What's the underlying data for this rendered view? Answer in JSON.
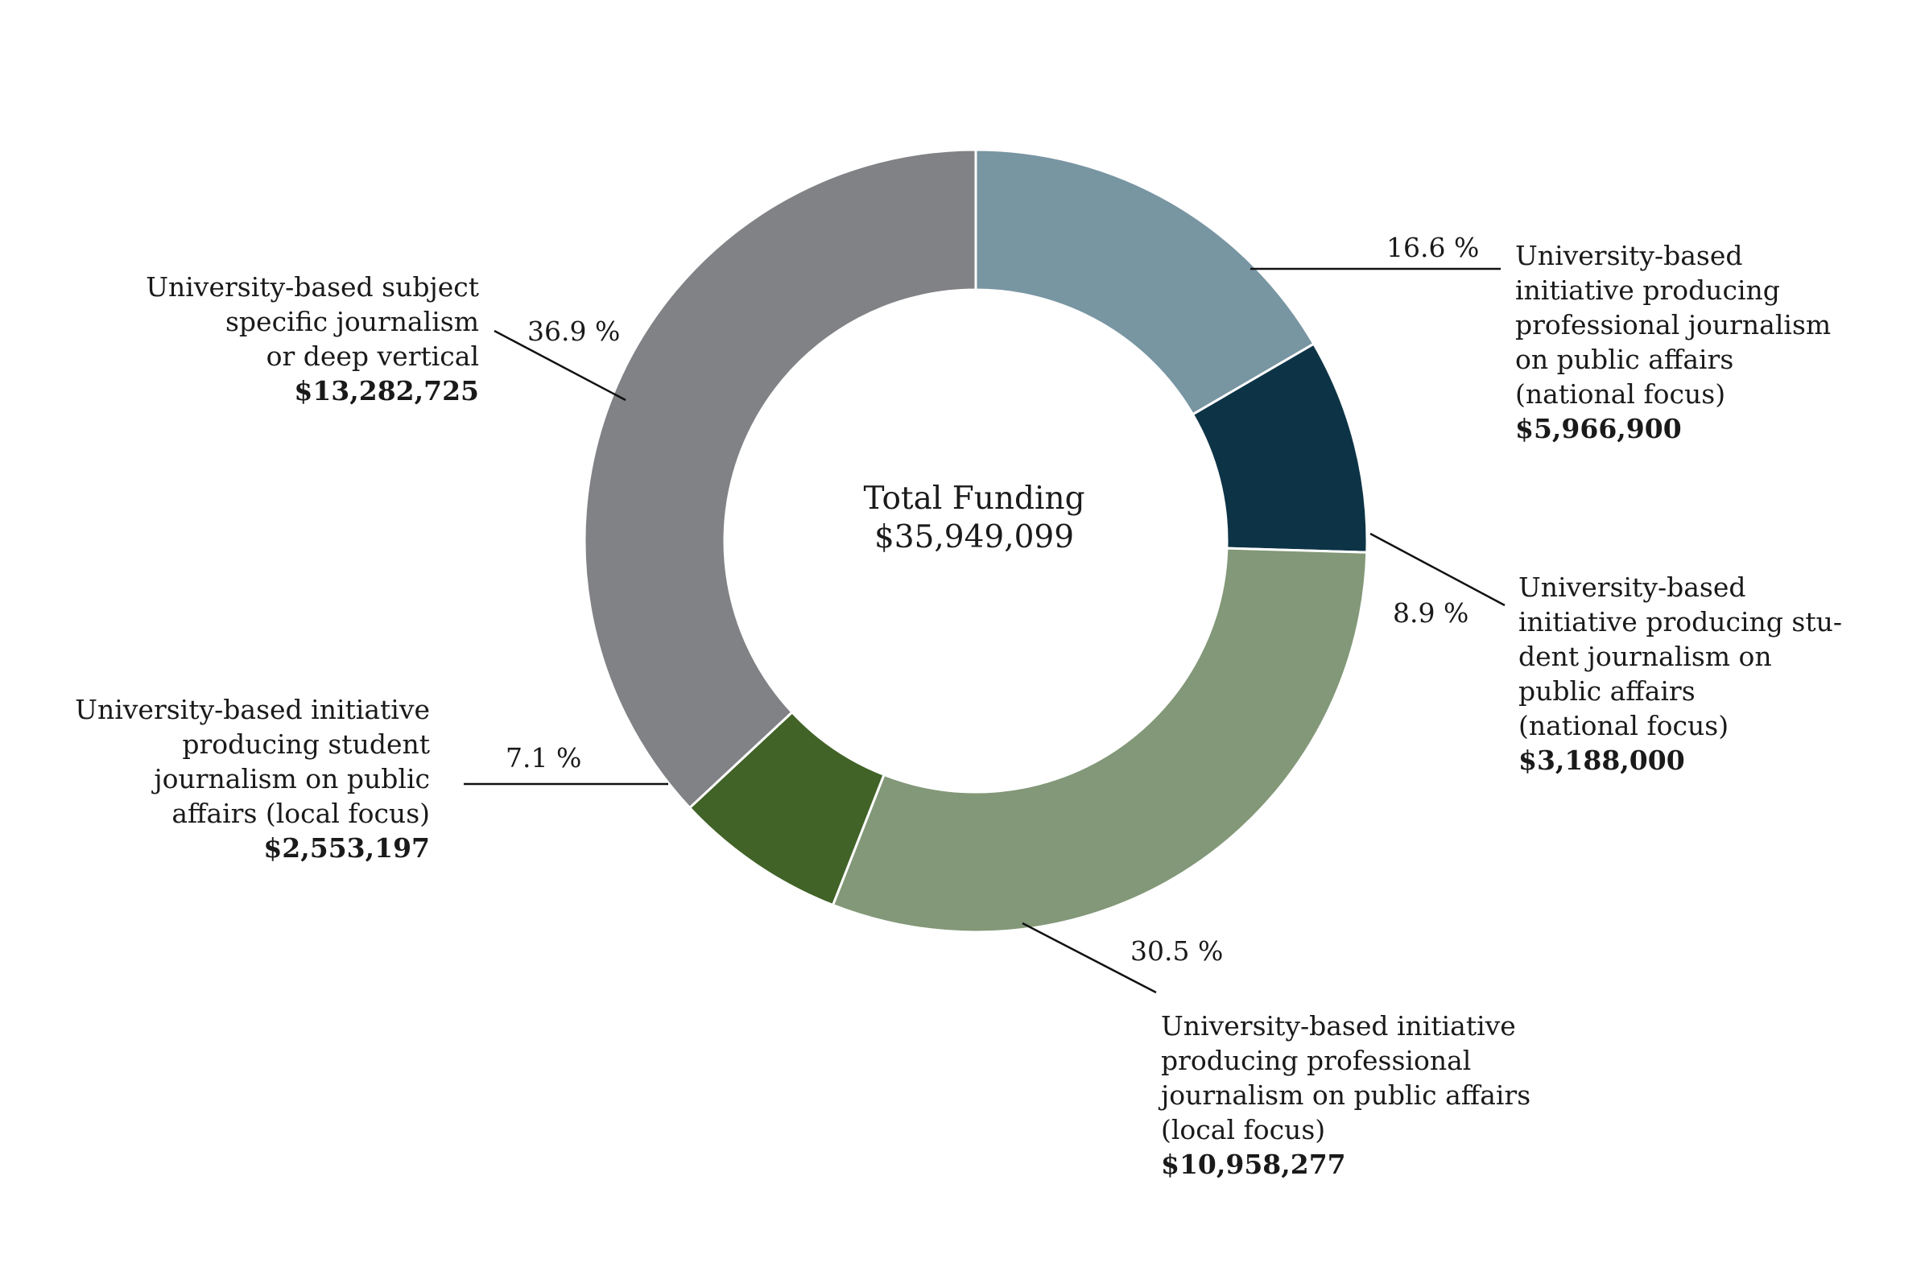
{
  "chart_data": {
    "type": "pie",
    "donut": true,
    "center": {
      "title": "Total Funding",
      "value": "$35,949,099"
    },
    "total": 35949099,
    "slices": [
      {
        "key": "pro-national",
        "label": "University-based\ninitiative producing\nprofessional journalism\non public affairs\n(national focus)",
        "amount": "$5,966,900",
        "value": 5966900,
        "percent": 16.6,
        "percent_label": "16.6 %",
        "color": "#7895a2"
      },
      {
        "key": "student-national",
        "label": "University-based\ninitiative producing stu-\ndent journalism on\npublic affairs\n(national focus)",
        "amount": "$3,188,000",
        "value": 3188000,
        "percent": 8.9,
        "percent_label": "8.9 %",
        "color": "#0d3446"
      },
      {
        "key": "pro-local",
        "label": "University-based initiative\nproducing professional\njournalism on public affairs\n(local focus)",
        "amount": "$10,958,277",
        "value": 10958277,
        "percent": 30.5,
        "percent_label": "30.5 %",
        "color": "#829878"
      },
      {
        "key": "student-local",
        "label": "University-based initiative\nproducing student\njournalism on public\naffairs (local focus)",
        "amount": "$2,553,197",
        "value": 2553197,
        "percent": 7.1,
        "percent_label": "7.1 %",
        "color": "#416327"
      },
      {
        "key": "deep-vertical",
        "label": "University-based subject\nspecific journalism\nor deep vertical",
        "amount": "$13,282,725",
        "value": 13282725,
        "percent": 36.9,
        "percent_label": "36.9 %",
        "color": "#818285"
      }
    ]
  }
}
